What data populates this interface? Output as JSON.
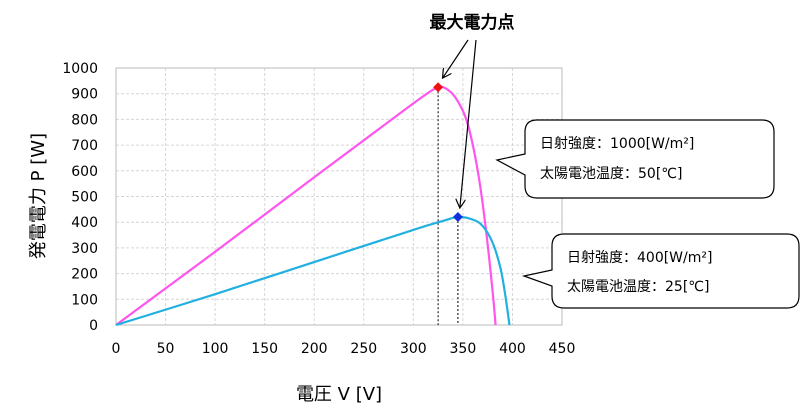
{
  "chart_data": {
    "type": "line",
    "xlabel": "電圧 V [V]",
    "ylabel": "発電電力 P [W]",
    "xlim": [
      0,
      450
    ],
    "ylim": [
      0,
      1000
    ],
    "x_ticks": [
      "0",
      "50",
      "100",
      "150",
      "200",
      "250",
      "300",
      "350",
      "400",
      "450"
    ],
    "y_ticks": [
      "0",
      "100",
      "200",
      "300",
      "400",
      "500",
      "600",
      "700",
      "800",
      "900",
      "1000"
    ],
    "grid": true,
    "annotation": "最大電力点",
    "series": [
      {
        "color": "#ff55ee",
        "x": [
          0,
          100,
          200,
          280,
          310,
          325,
          335,
          345,
          355,
          365,
          373,
          380,
          383
        ],
        "y": [
          0,
          285,
          575,
          805,
          890,
          925,
          915,
          870,
          780,
          600,
          380,
          130,
          0
        ],
        "max_point": {
          "x": 325,
          "y": 925,
          "color": "#ee1111"
        },
        "conditions": [
          "日射強度：1000[W/m²]",
          "太陽電池温度：50[℃]"
        ]
      },
      {
        "color": "#22b0e0",
        "x": [
          0,
          100,
          200,
          300,
          330,
          345,
          360,
          370,
          380,
          388,
          393,
          397
        ],
        "y": [
          0,
          120,
          245,
          370,
          405,
          420,
          410,
          385,
          320,
          220,
          110,
          0
        ],
        "max_point": {
          "x": 345,
          "y": 420,
          "color": "#1133dd"
        },
        "conditions": [
          "日射強度：400[W/m²]",
          "太陽電池温度：25[℃]"
        ]
      }
    ]
  }
}
